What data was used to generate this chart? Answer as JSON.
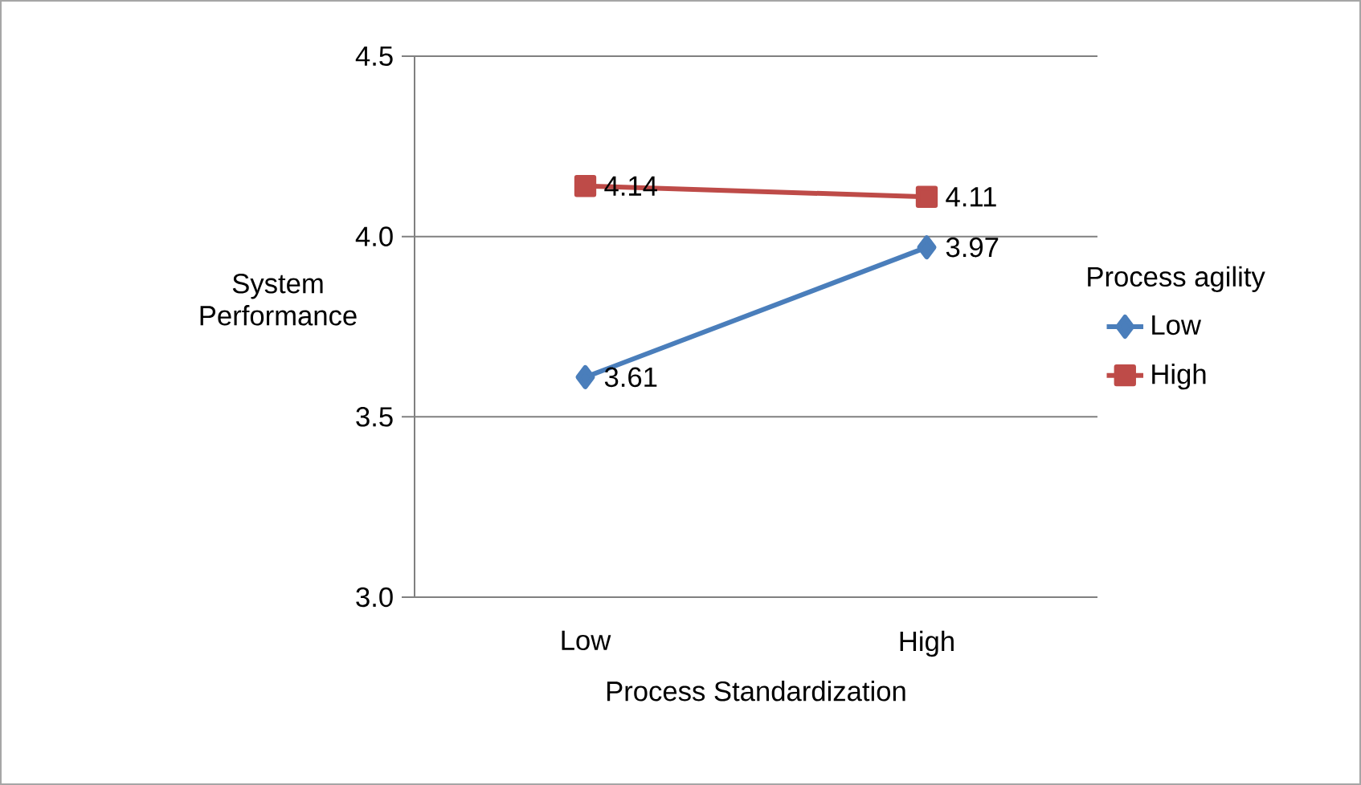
{
  "chart_data": {
    "type": "line",
    "xlabel": "Process Standardization",
    "ylabel": "System Performance",
    "legend_title": "Process agility",
    "categories": [
      "Low",
      "High"
    ],
    "series": [
      {
        "name": "Low",
        "color": "#4a7ebb",
        "values": [
          3.61,
          3.97
        ],
        "marker": "diamond"
      },
      {
        "name": "High",
        "color": "#be4b48",
        "values": [
          4.14,
          4.11
        ],
        "marker": "square"
      }
    ],
    "ylim": [
      3.0,
      4.5
    ],
    "yticks": [
      {
        "value": 3.0,
        "label": "3.0"
      },
      {
        "value": 3.5,
        "label": "3.5"
      },
      {
        "value": 4.0,
        "label": "4.0"
      },
      {
        "value": 4.5,
        "label": "4.5"
      }
    ],
    "grid": "y",
    "legend": "right",
    "data_labels": true,
    "line_style": "solid"
  }
}
